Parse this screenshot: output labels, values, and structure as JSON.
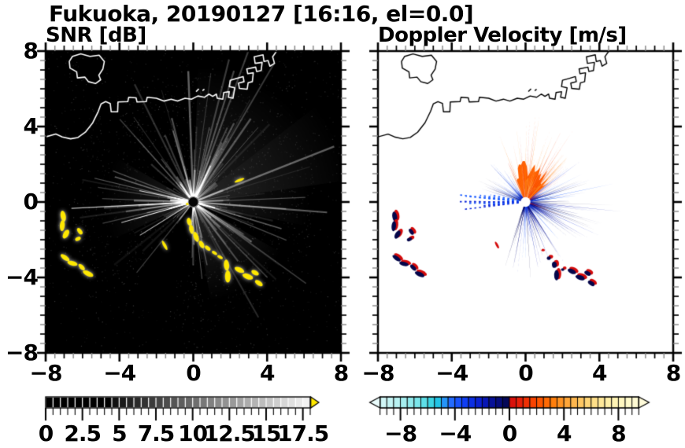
{
  "title": "Fukuoka, 20190127 [16:16, el=0.0]",
  "panels": [
    {
      "id": "snr",
      "title": "SNR [dB]"
    },
    {
      "id": "doppler",
      "title": "Doppler Velocity [m/s]"
    }
  ],
  "axes": {
    "x_tick_labels": [
      "−8",
      "−4",
      "0",
      "4",
      "8"
    ],
    "x_tick_values": [
      -8,
      -4,
      0,
      4,
      8
    ],
    "y_tick_labels": [
      "8",
      "4",
      "0",
      "−4",
      "−8"
    ],
    "y_tick_values": [
      8,
      4,
      0,
      -4,
      -8
    ],
    "x_range": [
      -8,
      8
    ],
    "y_range": [
      -8,
      8
    ]
  },
  "colorbars": [
    {
      "for": "snr",
      "labels": [
        "0",
        "2.5",
        "5",
        "7.5",
        "10",
        "12.5",
        "15",
        "17.5"
      ],
      "values": [
        0,
        2.5,
        5,
        7.5,
        10,
        12.5,
        15,
        17.5
      ],
      "range": [
        0,
        18
      ],
      "style": "grayscale black to white",
      "overflow": "right",
      "overflow_color": "#ffe800"
    },
    {
      "for": "doppler",
      "labels": [
        "−8",
        "−4",
        "0",
        "4",
        "8"
      ],
      "values": [
        -8,
        -4,
        0,
        4,
        8
      ],
      "range": [
        -10,
        10
      ],
      "style": "diverging cyan-blue negative / red-yellow positive",
      "overflow": "both",
      "overflow_color_left": "#eafcfc",
      "overflow_color_right": "#fffbda"
    }
  ],
  "chart_data": {
    "type": "heatmap",
    "title": "Fukuoka, 20190127 [16:16, el=0.0]",
    "site": "Fukuoka",
    "date": "20190127",
    "time": "16:16",
    "elevation_deg": 0.0,
    "x_range": [
      -8,
      8
    ],
    "y_range": [
      -8,
      8
    ],
    "radar_center_xy": [
      0,
      0
    ],
    "panels": [
      {
        "name": "SNR",
        "units": "dB",
        "background": "#000000",
        "colormap": "black 0 dB to white 18 dB, yellow above 18",
        "description": "radial clutter streaks from radar at origin, strong yellow echo chain SE of radar and patches in the W/SW"
      },
      {
        "name": "Doppler Velocity",
        "units": "m/s",
        "background": "#ffffff",
        "colormap": "cyan-blue negative, dark navy near 0-, red-orange-yellow positive, range -10 to 10",
        "description": "positive (orange) fan N-NE of radar, negative (navy/blue) spikes E, SE and NW, paired red/navy patches SW and SE"
      }
    ],
    "palette": {
      "echo_yellow": "#ffe800",
      "navy": "#04064a",
      "blue": "#1b5cff",
      "orange": "#ff6203",
      "red": "#e31607",
      "coast_snr": "#ffffff",
      "coast_vel": "#000000"
    },
    "coastline": [
      [
        -8,
        3.45
      ],
      [
        -7.45,
        3.6
      ],
      [
        -7.1,
        3.45
      ],
      [
        -6.65,
        3.35
      ],
      [
        -6.25,
        3.42
      ],
      [
        -5.85,
        3.7
      ],
      [
        -5.45,
        4.2
      ],
      [
        -5.15,
        4.8
      ],
      [
        -5.0,
        5.2
      ],
      [
        -4.75,
        5.32
      ],
      [
        -4.5,
        5.22
      ],
      [
        -4.45,
        4.78
      ],
      [
        -4.1,
        4.78
      ],
      [
        -4.08,
        5.3
      ],
      [
        -3.55,
        5.32
      ],
      [
        -3.5,
        5.55
      ],
      [
        -3.1,
        5.52
      ],
      [
        -3.05,
        5.3
      ],
      [
        -2.55,
        5.32
      ],
      [
        -2.5,
        5.55
      ],
      [
        -2.0,
        5.5
      ],
      [
        -1.6,
        5.35
      ],
      [
        -1.2,
        5.45
      ],
      [
        -0.85,
        5.35
      ],
      [
        -0.45,
        5.5
      ],
      [
        -0.1,
        5.45
      ],
      [
        0.25,
        5.62
      ],
      [
        0.6,
        5.55
      ],
      [
        0.85,
        5.72
      ],
      [
        1.05,
        5.6
      ],
      [
        1.25,
        5.72
      ],
      [
        1.3,
        5.5
      ],
      [
        1.6,
        5.45
      ],
      [
        1.65,
        5.8
      ],
      [
        1.95,
        5.85
      ],
      [
        1.9,
        5.55
      ],
      [
        2.15,
        5.5
      ],
      [
        2.25,
        6.05
      ],
      [
        1.95,
        6.12
      ],
      [
        2.0,
        6.45
      ],
      [
        2.35,
        6.55
      ],
      [
        2.7,
        6.65
      ],
      [
        2.75,
        6.38
      ],
      [
        2.45,
        6.3
      ],
      [
        2.5,
        6.02
      ],
      [
        2.92,
        5.98
      ],
      [
        2.97,
        6.32
      ],
      [
        3.2,
        6.38
      ],
      [
        3.25,
        6.85
      ],
      [
        2.95,
        6.8
      ],
      [
        2.9,
        7.05
      ],
      [
        3.38,
        7.15
      ],
      [
        3.43,
        6.92
      ],
      [
        3.68,
        6.97
      ],
      [
        3.73,
        7.4
      ],
      [
        3.35,
        7.35
      ],
      [
        3.3,
        7.7
      ],
      [
        3.78,
        7.8
      ],
      [
        3.83,
        7.45
      ],
      [
        4.05,
        7.5
      ],
      [
        4.15,
        7.2
      ],
      [
        4.4,
        7.35
      ],
      [
        4.3,
        7.7
      ],
      [
        4.55,
        8.05
      ]
    ],
    "island": [
      [
        -6.55,
        7.72
      ],
      [
        -6.1,
        7.85
      ],
      [
        -5.6,
        7.72
      ],
      [
        -5.1,
        7.78
      ],
      [
        -4.82,
        7.45
      ],
      [
        -4.9,
        7.05
      ],
      [
        -5.12,
        6.72
      ],
      [
        -5.02,
        6.48
      ],
      [
        -5.3,
        6.28
      ],
      [
        -5.68,
        6.38
      ],
      [
        -5.88,
        6.62
      ],
      [
        -6.28,
        6.58
      ],
      [
        -6.32,
        6.9
      ],
      [
        -6.68,
        7.1
      ],
      [
        -6.72,
        7.45
      ]
    ],
    "coast_marks": [
      [
        [
          0.15,
          5.85
        ],
        [
          0.3,
          6.0
        ]
      ],
      [
        [
          0.5,
          5.9
        ],
        [
          0.6,
          5.98
        ]
      ]
    ],
    "snr_echo_blobs": [
      [
        -0.3,
        -0.1,
        0.1,
        0.07,
        0
      ],
      [
        -0.22,
        -1.05,
        0.12,
        0.22,
        15
      ],
      [
        -0.1,
        -1.45,
        0.12,
        0.25,
        10
      ],
      [
        0.15,
        -1.85,
        0.13,
        0.28,
        20
      ],
      [
        0.45,
        -2.25,
        0.12,
        0.22,
        30
      ],
      [
        0.78,
        -2.45,
        0.18,
        0.1,
        -40
      ],
      [
        1.15,
        -2.7,
        0.16,
        0.08,
        -35
      ],
      [
        1.45,
        -2.92,
        0.16,
        0.08,
        -30
      ],
      [
        1.8,
        -3.35,
        0.14,
        0.3,
        5
      ],
      [
        1.87,
        -3.95,
        0.15,
        0.33,
        0
      ],
      [
        2.5,
        -3.6,
        0.28,
        0.13,
        -25
      ],
      [
        2.95,
        -3.95,
        0.3,
        0.14,
        -20
      ],
      [
        3.35,
        -3.75,
        0.22,
        0.12,
        -30
      ],
      [
        3.55,
        -4.3,
        0.24,
        0.12,
        -35
      ],
      [
        -7.05,
        -0.75,
        0.14,
        0.3,
        10
      ],
      [
        -7.1,
        -1.25,
        0.13,
        0.3,
        -5
      ],
      [
        -6.9,
        -1.7,
        0.14,
        0.26,
        -30
      ],
      [
        -6.15,
        -1.55,
        0.2,
        0.11,
        -55
      ],
      [
        -6.25,
        -1.95,
        0.16,
        0.1,
        25
      ],
      [
        -6.95,
        -2.95,
        0.28,
        0.12,
        -35
      ],
      [
        -6.55,
        -3.25,
        0.28,
        0.12,
        -15
      ],
      [
        -6.05,
        -3.45,
        0.22,
        0.11,
        -45
      ],
      [
        -5.7,
        -3.8,
        0.3,
        0.13,
        -25
      ],
      [
        -1.55,
        -2.3,
        0.28,
        0.08,
        -62
      ],
      [
        2.5,
        1.15,
        0.28,
        0.07,
        22
      ]
    ],
    "vel_echo_blobs": [
      [
        -7.05,
        -0.75,
        0.14,
        0.3,
        10
      ],
      [
        -7.1,
        -1.25,
        0.13,
        0.3,
        -5
      ],
      [
        -6.9,
        -1.7,
        0.14,
        0.26,
        -30
      ],
      [
        -6.15,
        -1.55,
        0.2,
        0.11,
        -55
      ],
      [
        -6.25,
        -1.95,
        0.16,
        0.1,
        25
      ],
      [
        -6.95,
        -2.95,
        0.28,
        0.12,
        -35
      ],
      [
        -6.55,
        -3.25,
        0.28,
        0.12,
        -15
      ],
      [
        -6.05,
        -3.45,
        0.22,
        0.11,
        -45
      ],
      [
        -5.7,
        -3.8,
        0.3,
        0.13,
        -25
      ],
      [
        1.3,
        -2.95,
        0.12,
        0.1,
        0
      ],
      [
        1.6,
        -3.3,
        0.14,
        0.18,
        5
      ],
      [
        1.72,
        -3.85,
        0.14,
        0.3,
        0
      ],
      [
        2.05,
        -3.55,
        0.1,
        0.08,
        0
      ],
      [
        2.55,
        -3.65,
        0.26,
        0.13,
        -25
      ],
      [
        3.0,
        -3.98,
        0.28,
        0.14,
        -20
      ],
      [
        3.4,
        -3.75,
        0.2,
        0.12,
        -30
      ],
      [
        3.6,
        -4.28,
        0.22,
        0.12,
        -35
      ]
    ],
    "vel_red_marks": [
      [
        -1.55,
        -2.28,
        0.2,
        0.06,
        -62
      ],
      [
        0.95,
        -2.55,
        0.09,
        0.07,
        0
      ]
    ],
    "vel_sectors": [
      {
        "sign": "positive",
        "color": "orange-red",
        "az_math_deg": [
          38,
          116
        ],
        "max_radius": 4.0
      },
      {
        "sign": "negative",
        "color": "navy",
        "az_math_deg": [
          -110,
          40
        ],
        "max_radius": 4.3
      },
      {
        "sign": "negative",
        "color": "blue",
        "az_math_deg": [
          118,
          170
        ],
        "max_radius": 2.9
      },
      {
        "sign": "negative",
        "color": "blue dotted rays",
        "az_math_deg": [
          170,
          195
        ],
        "max_radius": 3.8
      }
    ],
    "snr_shadow_sector_az_math_deg": [
      233,
      262
    ]
  }
}
